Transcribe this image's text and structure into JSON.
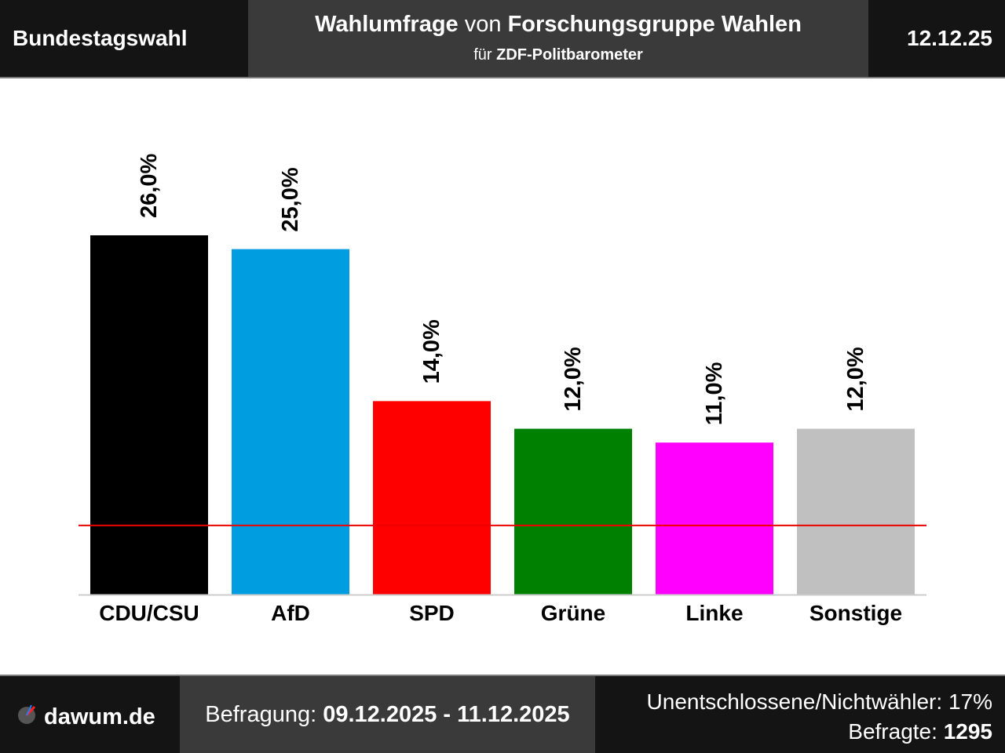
{
  "header": {
    "election": "Bundestagswahl",
    "title_poll": "Wahlumfrage",
    "title_von": "von",
    "institute": "Forschungsgruppe Wahlen",
    "subtitle_fuer": "für",
    "client": "ZDF-Politbarometer",
    "date": "12.12.25"
  },
  "chart_data": {
    "type": "bar",
    "categories": [
      "CDU/CSU",
      "AfD",
      "SPD",
      "Grüne",
      "Linke",
      "Sonstige"
    ],
    "values": [
      26.0,
      25.0,
      14.0,
      12.0,
      11.0,
      12.0
    ],
    "value_labels": [
      "26,0%",
      "25,0%",
      "14,0%",
      "12,0%",
      "11,0%",
      "12,0%"
    ],
    "colors": [
      "#000000",
      "#009ee0",
      "#ff0000",
      "#008000",
      "#ff00ff",
      "#c0c0c0"
    ],
    "threshold": 5,
    "threshold_color": "#ee0000",
    "ylim": [
      0,
      26
    ]
  },
  "footer": {
    "site": "dawum.de",
    "period_label": "Befragung:",
    "period": "09.12.2025 - 11.12.2025",
    "undecided_label": "Unentschlossene/Nichtwähler:",
    "undecided": "17%",
    "respondents_label": "Befragte:",
    "respondents": "1295"
  }
}
